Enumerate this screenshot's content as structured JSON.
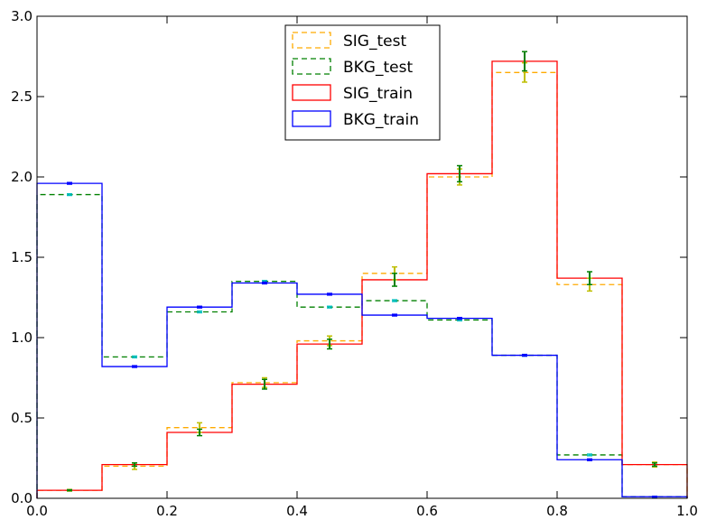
{
  "chart_data": {
    "type": "step-histogram",
    "title": "",
    "xlabel": "",
    "ylabel": "",
    "xlim": [
      0.0,
      1.0
    ],
    "ylim": [
      0.0,
      3.0
    ],
    "grid": false,
    "legend_position": "upper center",
    "bin_edges": [
      0.0,
      0.1,
      0.2,
      0.3,
      0.4,
      0.5,
      0.6,
      0.7,
      0.8,
      0.9,
      1.0
    ],
    "x_ticks": [
      "0.0",
      "0.2",
      "0.4",
      "0.6",
      "0.8",
      "1.0"
    ],
    "x_tick_values": [
      0.0,
      0.2,
      0.4,
      0.6,
      0.8,
      1.0
    ],
    "y_ticks": [
      "0.0",
      "0.5",
      "1.0",
      "1.5",
      "2.0",
      "2.5",
      "3.0"
    ],
    "y_tick_values": [
      0.0,
      0.5,
      1.0,
      1.5,
      2.0,
      2.5,
      3.0
    ],
    "series": [
      {
        "name": "SIG_test",
        "style": "dashed",
        "color": "#ffaa00",
        "values": [
          0.05,
          0.2,
          0.44,
          0.72,
          0.98,
          1.4,
          2.0,
          2.65,
          1.33,
          0.21
        ],
        "errors": [
          0.005,
          0.02,
          0.03,
          0.03,
          0.03,
          0.04,
          0.05,
          0.06,
          0.04,
          0.015
        ],
        "errorbar_color": "#bfbf00"
      },
      {
        "name": "BKG_test",
        "style": "dashed",
        "color": "#008000",
        "values": [
          1.89,
          0.88,
          1.16,
          1.35,
          1.19,
          1.23,
          1.11,
          0.89,
          0.27,
          0.01
        ],
        "errors": [
          0.005,
          0.005,
          0.005,
          0.005,
          0.005,
          0.005,
          0.005,
          0.005,
          0.005,
          0.002
        ],
        "errorbar_color": "#00bfbf"
      },
      {
        "name": "SIG_train",
        "style": "solid",
        "color": "#ff0000",
        "values": [
          0.05,
          0.21,
          0.41,
          0.71,
          0.96,
          1.36,
          2.02,
          2.72,
          1.37,
          0.21
        ],
        "errors": [
          0.003,
          0.01,
          0.02,
          0.03,
          0.03,
          0.04,
          0.05,
          0.06,
          0.04,
          0.01
        ],
        "errorbar_color": "#008000"
      },
      {
        "name": "BKG_train",
        "style": "solid",
        "color": "#0000ff",
        "values": [
          1.96,
          0.82,
          1.19,
          1.34,
          1.27,
          1.14,
          1.12,
          0.89,
          0.24,
          0.01
        ],
        "errors": [
          0.005,
          0.005,
          0.005,
          0.005,
          0.005,
          0.005,
          0.005,
          0.005,
          0.005,
          0.002
        ],
        "errorbar_color": "#0000ff"
      }
    ]
  }
}
